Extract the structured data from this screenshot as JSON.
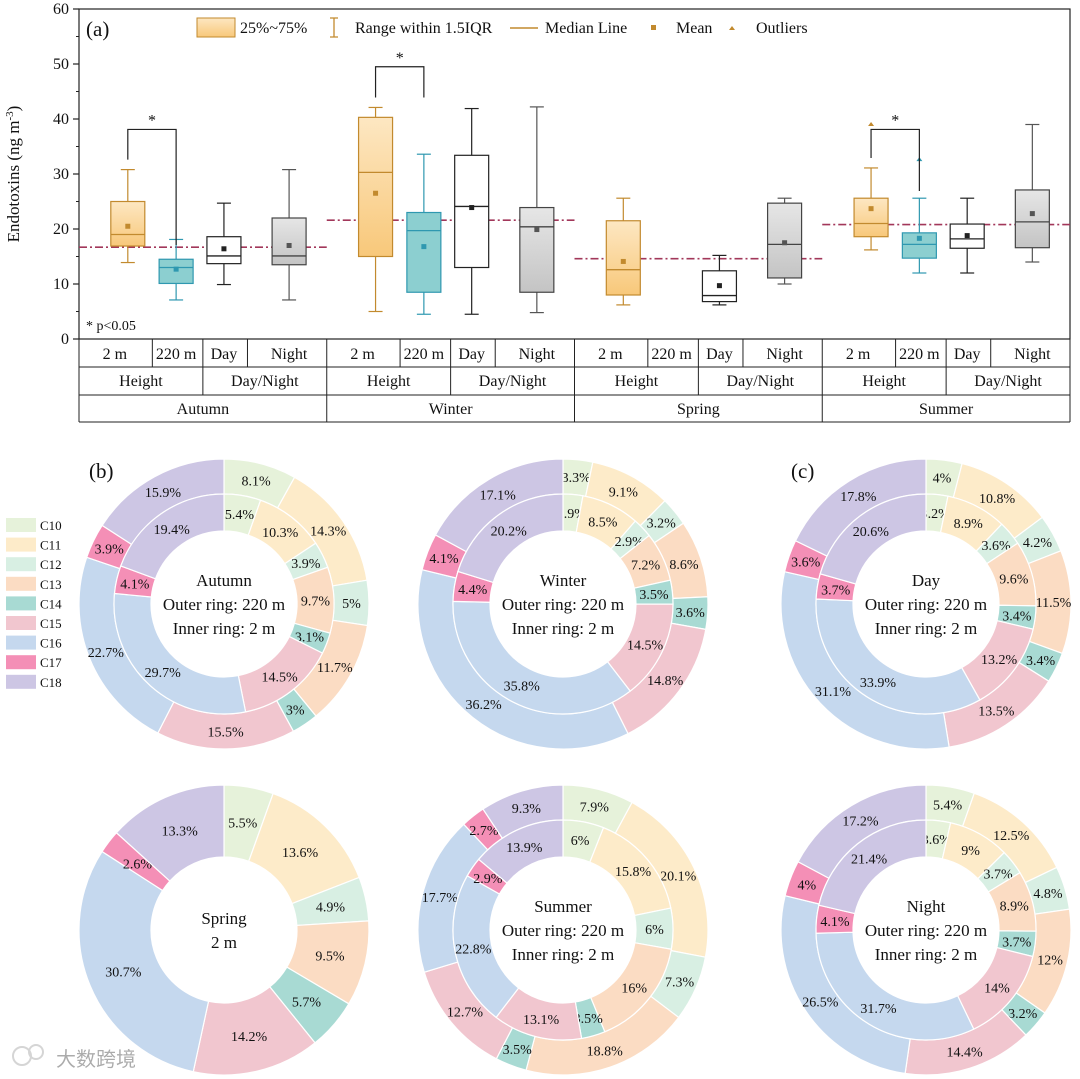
{
  "chart_data": [
    {
      "type": "box",
      "panel": "(a)",
      "ylabel": "Endotoxins (ng m-3)",
      "ylabel_main": "Endotoxins (ng m",
      "ylabel_sup": "-3",
      "ylabel_end": ")",
      "ylim": [
        0,
        60
      ],
      "yticks": [
        0,
        10,
        20,
        30,
        40,
        50,
        60
      ],
      "legend": {
        "box": "25%~75%",
        "whisker": "Range within 1.5IQR",
        "median": "Median Line",
        "mean": "Mean",
        "outlier": "Outliers"
      },
      "note": "* p<0.05",
      "group_labels": {
        "height": "Height",
        "daynight": "Day/Night"
      },
      "seasons": [
        {
          "name": "Autumn",
          "ref_line": 16.7,
          "sig_bracket": [
            17.1,
            38.1
          ],
          "boxes": [
            {
              "label": "2 m",
              "style": "orange",
              "min": 13.9,
              "q1": 16.9,
              "median": 19.0,
              "q3": 25.0,
              "max": 30.8,
              "mean": 20.5
            },
            {
              "label": "220 m",
              "style": "teal",
              "min": 7.1,
              "q1": 10.1,
              "median": 13.0,
              "q3": 14.5,
              "max": 18.1,
              "mean": 12.7
            },
            {
              "label": "Day",
              "style": "white",
              "min": 9.9,
              "q1": 13.7,
              "median": 15.1,
              "q3": 18.6,
              "max": 24.7,
              "mean": 16.4
            },
            {
              "label": "Night",
              "style": "gray",
              "min": 7.1,
              "q1": 13.5,
              "median": 15.1,
              "q3": 22.0,
              "max": 30.8,
              "mean": 17.0
            }
          ]
        },
        {
          "name": "Winter",
          "ref_line": 21.6,
          "sig_bracket": [
            43.9,
            49.5
          ],
          "boxes": [
            {
              "label": "2 m",
              "style": "orange",
              "min": 5.0,
              "q1": 15.0,
              "median": 30.3,
              "q3": 40.3,
              "max": 42.1,
              "mean": 26.5
            },
            {
              "label": "220 m",
              "style": "teal",
              "min": 4.5,
              "q1": 8.5,
              "median": 19.7,
              "q3": 23.0,
              "max": 33.6,
              "mean": 16.8
            },
            {
              "label": "Day",
              "style": "white",
              "min": 4.5,
              "q1": 13.0,
              "median": 24.1,
              "q3": 33.4,
              "max": 41.9,
              "mean": 23.9
            },
            {
              "label": "Night",
              "style": "gray",
              "min": 4.8,
              "q1": 8.5,
              "median": 20.4,
              "q3": 23.9,
              "max": 42.2,
              "mean": 19.9
            }
          ]
        },
        {
          "name": "Spring",
          "ref_line": 14.6,
          "sig_bracket": null,
          "boxes": [
            {
              "label": "2 m",
              "style": "orange",
              "min": 6.2,
              "q1": 8.0,
              "median": 12.6,
              "q3": 21.5,
              "max": 25.6,
              "mean": 14.1
            },
            {
              "label": "220 m",
              "style": "none"
            },
            {
              "label": "Day",
              "style": "white",
              "min": 6.2,
              "q1": 6.8,
              "median": 7.9,
              "q3": 12.4,
              "max": 15.2,
              "mean": 9.7
            },
            {
              "label": "Night",
              "style": "gray",
              "min": 10.0,
              "q1": 11.1,
              "median": 17.2,
              "q3": 24.7,
              "max": 25.6,
              "mean": 17.5
            }
          ]
        },
        {
          "name": "Summer",
          "ref_line": 20.8,
          "sig_bracket": [
            26.9,
            38.1
          ],
          "boxes": [
            {
              "label": "2 m",
              "style": "orange",
              "min": 16.2,
              "q1": 18.6,
              "median": 21.0,
              "q3": 25.6,
              "max": 31.1,
              "mean": 23.7,
              "outliers": [
                39.1
              ]
            },
            {
              "label": "220 m",
              "style": "teal",
              "min": 12.0,
              "q1": 14.7,
              "median": 17.2,
              "q3": 19.3,
              "max": 25.6,
              "mean": 18.3,
              "outliers": [
                32.7
              ]
            },
            {
              "label": "Day",
              "style": "white",
              "min": 12.0,
              "q1": 16.5,
              "median": 18.2,
              "q3": 20.9,
              "max": 25.6,
              "mean": 18.8
            },
            {
              "label": "Night",
              "style": "gray",
              "min": 14.0,
              "q1": 16.6,
              "median": 21.3,
              "q3": 27.1,
              "max": 39.0,
              "mean": 22.8
            }
          ]
        }
      ],
      "sig_marker": "*"
    },
    {
      "type": "pie",
      "panels": [
        {
          "tag": "(b)",
          "title": [
            "Autumn",
            "Outer ring: 220 m",
            "Inner ring: 2 m"
          ],
          "outer": [
            8.1,
            14.3,
            5.0,
            11.7,
            3.0,
            15.5,
            22.7,
            3.9,
            15.9
          ],
          "inner": [
            5.4,
            10.3,
            3.9,
            9.7,
            3.1,
            14.5,
            29.7,
            4.1,
            19.4
          ],
          "outer_labels": [
            "8.1%",
            "14.3%",
            "5%",
            "11.7%",
            "3%",
            "15.5%",
            "22.7%",
            "3.9%",
            "15.9%"
          ],
          "inner_labels": [
            "5.4%",
            "10.3%",
            "3.9%",
            "9.7%",
            "3.1%",
            "14.5%",
            "29.7%",
            "4.1%",
            "19.4%"
          ]
        },
        {
          "tag": "",
          "title": [
            "Winter",
            "Outer ring: 220 m",
            "Inner ring: 2 m"
          ],
          "outer": [
            3.3,
            9.1,
            3.2,
            8.6,
            3.6,
            14.8,
            36.2,
            4.1,
            17.1
          ],
          "inner": [
            2.9,
            8.5,
            2.9,
            7.2,
            3.5,
            14.5,
            35.8,
            4.4,
            20.2
          ],
          "outer_labels": [
            "3.3%",
            "9.1%",
            "3.2%",
            "8.6%",
            "3.6%",
            "14.8%",
            "36.2%",
            "4.1%",
            "17.1%"
          ],
          "inner_labels": [
            "2.9%",
            "8.5%",
            "2.9%",
            "7.2%",
            "3.5%",
            "14.5%",
            "35.8%",
            "4.4%",
            "20.2%"
          ]
        },
        {
          "tag": "(c)",
          "title": [
            "Day",
            "Outer ring: 220 m",
            "Inner ring: 2 m"
          ],
          "outer": [
            4.0,
            10.8,
            4.2,
            11.5,
            3.4,
            13.5,
            31.1,
            3.6,
            17.8
          ],
          "inner": [
            3.2,
            8.9,
            3.6,
            9.6,
            3.4,
            13.2,
            33.9,
            3.7,
            20.6
          ],
          "outer_labels": [
            "4%",
            "10.8%",
            "4.2%",
            "11.5%",
            "3.4%",
            "13.5%",
            "31.1%",
            "3.6%",
            "17.8%"
          ],
          "inner_labels": [
            "3.2%",
            "8.9%",
            "3.6%",
            "9.6%",
            "3.4%",
            "13.2%",
            "33.9%",
            "3.7%",
            "20.6%"
          ]
        },
        {
          "tag": "",
          "title": [
            "Spring",
            "2 m"
          ],
          "outer": [
            5.5,
            13.6,
            4.9,
            9.5,
            5.7,
            14.2,
            30.7,
            2.6,
            13.3
          ],
          "inner": null,
          "outer_labels": [
            "5.5%",
            "13.6%",
            "4.9%",
            "9.5%",
            "5.7%",
            "14.2%",
            "30.7%",
            "2.6%",
            "13.3%"
          ],
          "inner_labels": null
        },
        {
          "tag": "",
          "title": [
            "Summer",
            "Outer ring: 220 m",
            "Inner ring: 2 m"
          ],
          "outer": [
            7.9,
            20.1,
            7.3,
            18.8,
            3.5,
            12.7,
            17.7,
            2.7,
            9.3
          ],
          "inner": [
            6.0,
            15.8,
            6.0,
            16.0,
            3.5,
            13.1,
            22.8,
            2.9,
            13.9
          ],
          "outer_labels": [
            "7.9%",
            "20.1%",
            "7.3%",
            "18.8%",
            "3.5%",
            "12.7%",
            "17.7%",
            "2.7%",
            "9.3%"
          ],
          "inner_labels": [
            "6%",
            "15.8%",
            "6%",
            "16%",
            "3.5%",
            "13.1%",
            "22.8%",
            "2.9%",
            "13.9%"
          ]
        },
        {
          "tag": "",
          "title": [
            "Night",
            "Outer ring: 220 m",
            "Inner ring: 2 m"
          ],
          "outer": [
            5.4,
            12.5,
            4.8,
            12.0,
            3.2,
            14.4,
            26.5,
            4.0,
            17.2
          ],
          "inner": [
            3.6,
            9.0,
            3.7,
            8.9,
            3.7,
            14.0,
            31.7,
            4.1,
            21.4
          ],
          "outer_labels": [
            "5.4%",
            "12.5%",
            "4.8%",
            "12%",
            "3.2%",
            "14.4%",
            "26.5%",
            "4%",
            "17.2%"
          ],
          "inner_labels": [
            "3.6%",
            "9%",
            "3.7%",
            "8.9%",
            "3.7%",
            "14%",
            "31.7%",
            "4.1%",
            "21.4%"
          ]
        }
      ],
      "legend": [
        "C10",
        "C11",
        "C12",
        "C13",
        "C14",
        "C15",
        "C16",
        "C17",
        "C18"
      ],
      "colors": [
        "#e6f2da",
        "#fdebc9",
        "#d8efe3",
        "#fbdcc3",
        "#a8dad3",
        "#f1c6cf",
        "#c5d8ee",
        "#f48fb6",
        "#cdc6e4"
      ]
    }
  ],
  "colors": {
    "orange_box": "#f8c87a",
    "orange_stroke": "#c28a2e",
    "teal_box": "#8ccfd0",
    "teal_stroke": "#2f98b0",
    "gray_box": "#c4c4c4",
    "ref_line": "#a2375a"
  },
  "watermark": "大数跨境"
}
